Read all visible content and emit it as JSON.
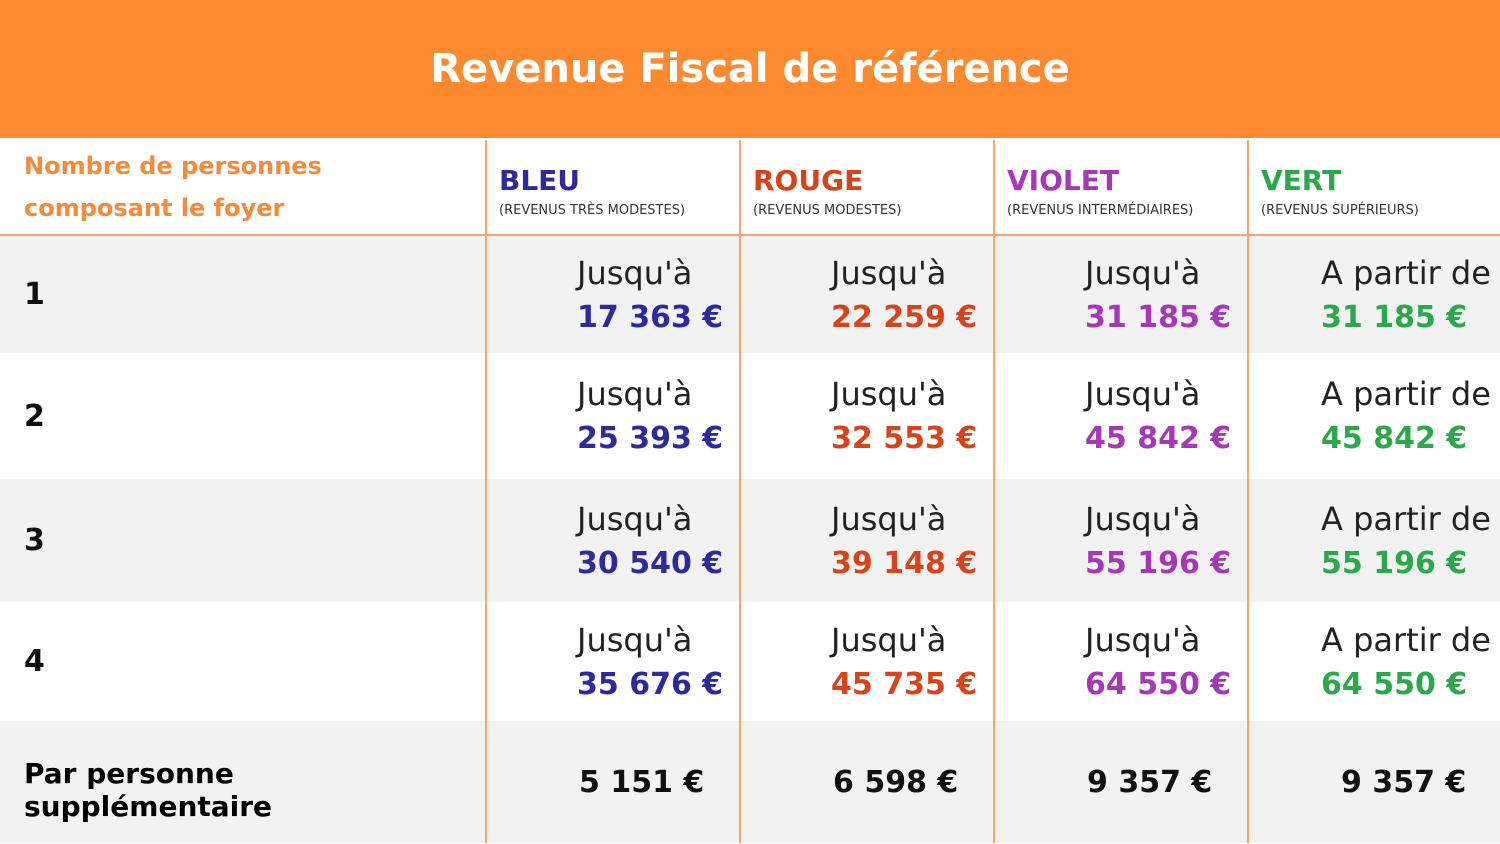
{
  "title": "Revenue Fiscal de référence",
  "header": {
    "label": "Nombre de personnes composant le foyer",
    "columns": [
      {
        "name": "BLEU",
        "subtitle": "(REVENUS TRÈS MODESTES)"
      },
      {
        "name": "ROUGE",
        "subtitle": "(REVENUS MODESTES)"
      },
      {
        "name": "VIOLET",
        "subtitle": "(REVENUS INTERMÉDIAIRES)"
      },
      {
        "name": "VERT",
        "subtitle": "(REVENUS SUPÉRIEURS)"
      }
    ]
  },
  "rows": [
    {
      "label": "1",
      "cells": [
        {
          "prefix": "Jusqu'à",
          "amount": "17 363 €"
        },
        {
          "prefix": "Jusqu'à",
          "amount": "22 259 €"
        },
        {
          "prefix": "Jusqu'à",
          "amount": "31 185 €"
        },
        {
          "prefix": "A partir de",
          "amount": "31 185 €"
        }
      ]
    },
    {
      "label": "2",
      "cells": [
        {
          "prefix": "Jusqu'à",
          "amount": "25 393 €"
        },
        {
          "prefix": "Jusqu'à",
          "amount": "32 553 €"
        },
        {
          "prefix": "Jusqu'à",
          "amount": "45 842 €"
        },
        {
          "prefix": "A partir de",
          "amount": "45 842 €"
        }
      ]
    },
    {
      "label": "3",
      "cells": [
        {
          "prefix": "Jusqu'à",
          "amount": "30 540 €"
        },
        {
          "prefix": "Jusqu'à",
          "amount": "39 148 €"
        },
        {
          "prefix": "Jusqu'à",
          "amount": "55 196 €"
        },
        {
          "prefix": "A partir de",
          "amount": "55 196 €"
        }
      ]
    },
    {
      "label": "4",
      "cells": [
        {
          "prefix": "Jusqu'à",
          "amount": "35 676 €"
        },
        {
          "prefix": "Jusqu'à",
          "amount": "45 735 €"
        },
        {
          "prefix": "Jusqu'à",
          "amount": "64 550 €"
        },
        {
          "prefix": "A partir de",
          "amount": "64 550 €"
        }
      ]
    }
  ],
  "footer": {
    "label": "Par personne supplémentaire",
    "amounts": [
      "5 151 €",
      "6 598 €",
      "9 357 €",
      "9 357 €"
    ]
  }
}
